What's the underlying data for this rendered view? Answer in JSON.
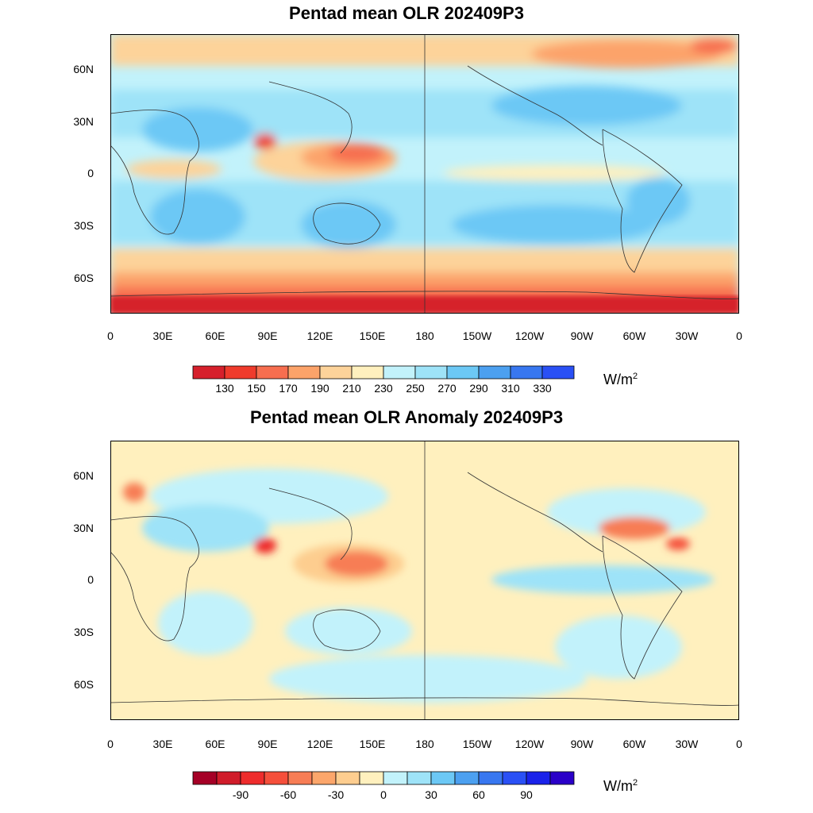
{
  "panels": [
    {
      "title": "Pentad mean OLR 202409P3",
      "lat_labels": [
        "60N",
        "30N",
        "0",
        "30S",
        "60S"
      ],
      "lon_labels": [
        "0",
        "30E",
        "60E",
        "90E",
        "120E",
        "150E",
        "180",
        "150W",
        "120W",
        "90W",
        "60W",
        "30W",
        "0"
      ],
      "colorbar": {
        "labels": [
          "130",
          "150",
          "170",
          "190",
          "210",
          "230",
          "250",
          "270",
          "290",
          "310",
          "330"
        ],
        "colors": [
          "#d6202c",
          "#ef3b2c",
          "#f76e4f",
          "#fca36a",
          "#fdd39a",
          "#fff0be",
          "#c2f2fb",
          "#9ee3f8",
          "#6cc8f5",
          "#4ca0f0",
          "#3877f0",
          "#2a50f5"
        ],
        "unit": "W/m",
        "unit_sup": "2"
      }
    },
    {
      "title": "Pentad mean OLR Anomaly 202409P3",
      "lat_labels": [
        "60N",
        "30N",
        "0",
        "30S",
        "60S"
      ],
      "lon_labels": [
        "0",
        "30E",
        "60E",
        "90E",
        "120E",
        "150E",
        "180",
        "150W",
        "120W",
        "90W",
        "60W",
        "30W",
        "0"
      ],
      "colorbar": {
        "labels": [
          "-90",
          "-60",
          "-30",
          "0",
          "30",
          "60",
          "90"
        ],
        "colors": [
          "#a50026",
          "#d01c2a",
          "#ee2c2c",
          "#f54f3b",
          "#f77d55",
          "#fca66b",
          "#fdcd8f",
          "#fff0be",
          "#c2f2fb",
          "#9ee3f8",
          "#6cc8f5",
          "#4ca0f0",
          "#3877f0",
          "#2a50f5",
          "#1a22ea",
          "#2a00c8"
        ],
        "unit": "W/m",
        "unit_sup": "2"
      }
    }
  ]
}
